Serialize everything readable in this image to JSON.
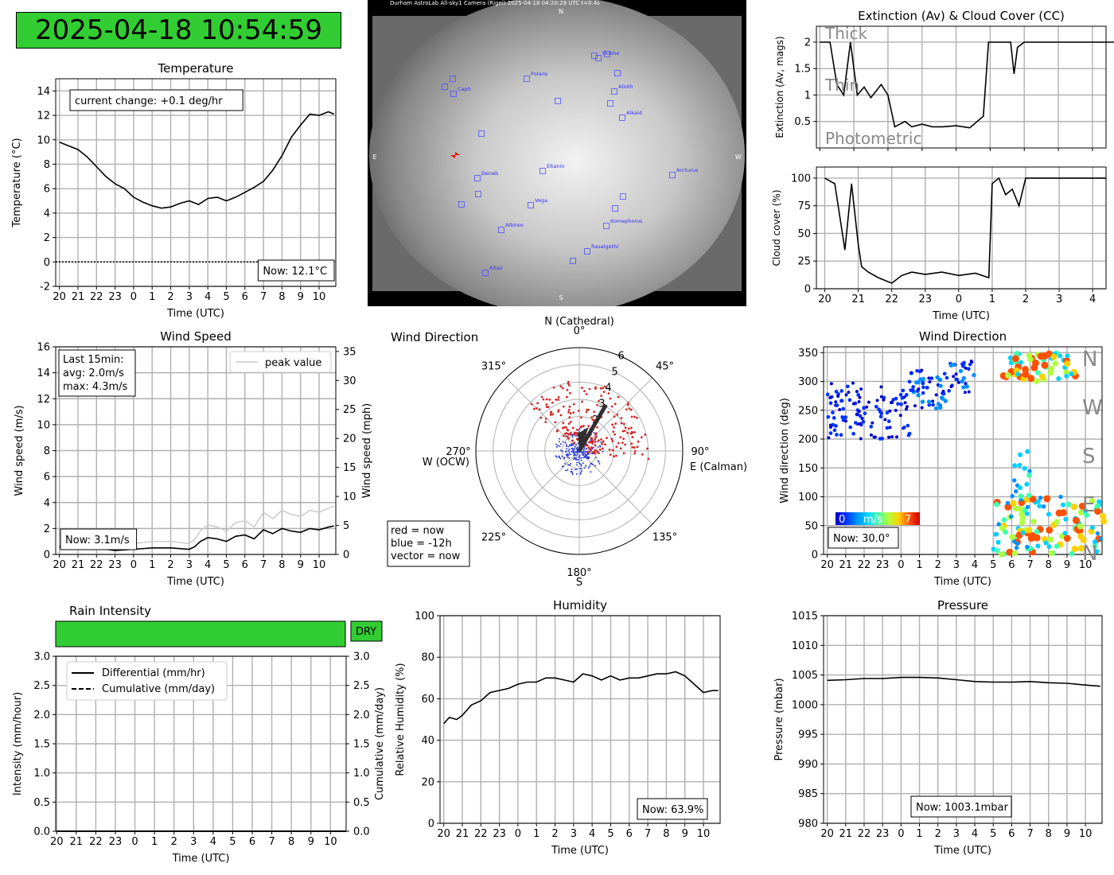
{
  "timestamp": "2025-04-18 10:54:59",
  "colors": {
    "ok": "#32cd32",
    "grid": "#b0b0b0",
    "now": "#d62728",
    "past": "#2b3bd6",
    "vector": "#2f2f2f",
    "star": "#5050ff"
  },
  "time_ticks": [
    "20",
    "21",
    "22",
    "23",
    "0",
    "1",
    "2",
    "3",
    "4",
    "5",
    "6",
    "7",
    "8",
    "9",
    "10"
  ],
  "time_label": "Time (UTC)",
  "allsky": {
    "header": "Durham AstroLab All-sky1 Camera (Rigel)        2025-04-18 04:20:29 UTC        t=0.4s",
    "compass": {
      "n": "N",
      "s": "S",
      "e": "E",
      "w": "W"
    },
    "stars": [
      "Dubhe",
      "Polaris",
      "Caph",
      "Alioth",
      "Alkaid",
      "Eltanin",
      "Deneb",
      "Vega",
      "Arcturus",
      "Albireo",
      "Komephoros",
      "Rasalgethi",
      "Altair"
    ]
  },
  "rain": {
    "title": "Rain Intensity",
    "status": "DRY",
    "legend": [
      "Differential (mm/hr)",
      "Cumulative (mm/day)"
    ]
  },
  "chart_data": [
    {
      "id": "temperature",
      "type": "line",
      "title": "Temperature",
      "xlabel": "Time (UTC)",
      "ylabel": "Temperature (°C)",
      "ylim": [
        -2,
        15
      ],
      "yticks": [
        -2,
        0,
        2,
        4,
        6,
        8,
        10,
        12,
        14
      ],
      "annotation": "current change: +0.1 deg/hr",
      "now_label": "Now: 12.1°C",
      "series": [
        {
          "x": [
            20,
            20.5,
            21,
            21.5,
            22,
            22.5,
            23,
            23.5,
            24,
            24.5,
            25,
            25.5,
            26,
            26.5,
            27,
            27.5,
            28,
            28.5,
            29,
            29.5,
            30,
            30.5,
            31,
            31.5,
            32,
            32.5,
            33,
            33.5,
            34,
            34.5,
            34.8
          ],
          "y": [
            9.8,
            9.5,
            9.2,
            8.6,
            7.8,
            7.0,
            6.4,
            6.0,
            5.3,
            4.9,
            4.6,
            4.4,
            4.5,
            4.8,
            5.0,
            4.7,
            5.2,
            5.3,
            5.0,
            5.3,
            5.7,
            6.1,
            6.6,
            7.5,
            8.7,
            10.2,
            11.2,
            12.1,
            12.0,
            12.3,
            12.1
          ]
        }
      ],
      "hline": 0
    },
    {
      "id": "wind_speed",
      "type": "line",
      "title": "Wind Speed",
      "xlabel": "Time (UTC)",
      "ylabel": "Wind speed (m/s)",
      "ylabel_right": "Wind speed (mph)",
      "ylim": [
        0,
        16
      ],
      "yticks": [
        0,
        2,
        4,
        6,
        8,
        10,
        12,
        14,
        16
      ],
      "yticks_right": [
        0,
        5,
        10,
        15,
        20,
        25,
        30,
        35
      ],
      "legend": "peak value",
      "stats": [
        "Last 15min:",
        "avg: 2.0m/s",
        "max: 4.3m/s"
      ],
      "now_label": "Now: 3.1m/s",
      "series": [
        {
          "x": [
            20,
            21,
            22,
            23,
            24,
            25,
            26,
            27,
            27.3,
            27.6,
            28,
            28.5,
            29,
            29.5,
            30,
            30.5,
            31,
            31.5,
            32,
            32.5,
            33,
            33.5,
            34,
            34.5,
            34.8
          ],
          "y": [
            0.6,
            0.4,
            0.5,
            0.3,
            0.4,
            0.5,
            0.5,
            0.4,
            0.6,
            1.0,
            1.3,
            1.2,
            1.0,
            1.4,
            1.5,
            1.2,
            1.9,
            1.6,
            2.0,
            1.8,
            1.7,
            2.0,
            1.9,
            2.1,
            2.2
          ]
        }
      ]
    },
    {
      "id": "wind_direction_polar",
      "type": "scatter",
      "title": "Wind Direction",
      "north_label": "N (Cathedral)",
      "south_label": "S",
      "east_label": "E (Calman)",
      "west_label": "W (OCW)",
      "angle_labels": [
        "0°",
        "45°",
        "90°",
        "135°",
        "180°",
        "225°",
        "270°",
        "315°"
      ],
      "radial_ticks": [
        2,
        3,
        4,
        5,
        6
      ],
      "rlim": [
        0,
        6
      ],
      "legend_lines": [
        "red = now",
        "blue = -12h",
        "vector = now"
      ],
      "vector": {
        "direction_deg": 30,
        "speed": 3.1
      }
    },
    {
      "id": "extinction",
      "type": "line",
      "title": "Extinction (Av) & Cloud Cover (CC)",
      "ylabel": "Extinction (Av, mags)",
      "ylim": [
        0,
        2.3
      ],
      "yticks": [
        0.5,
        1.0,
        1.5,
        2.0
      ],
      "bands": [
        "Thick",
        "Thin",
        "Photometric"
      ],
      "series": [
        {
          "x": [
            20,
            20.3,
            20.5,
            20.7,
            20.9,
            21.1,
            21.3,
            21.5,
            21.8,
            22,
            22.2,
            22.5,
            22.7,
            23,
            23.3,
            23.6,
            24,
            24.4,
            24.8,
            24.95,
            25.05,
            25.3,
            25.6,
            25.7,
            25.8,
            26,
            26.5,
            27,
            28,
            29,
            30,
            31,
            32,
            33,
            34,
            34.8
          ],
          "y": [
            2.0,
            2.0,
            1.2,
            1.0,
            2.0,
            1.0,
            1.15,
            0.95,
            1.2,
            1.0,
            0.4,
            0.5,
            0.4,
            0.45,
            0.4,
            0.4,
            0.42,
            0.38,
            0.6,
            2.0,
            2.0,
            2.0,
            2.0,
            1.4,
            1.9,
            2.0,
            2.0,
            2.0,
            2.0,
            2.0,
            2.0,
            2.0,
            2.0,
            2.0,
            2.0,
            2.0
          ]
        }
      ]
    },
    {
      "id": "cloud_cover",
      "type": "line",
      "title": "",
      "xlabel": "Time (UTC)",
      "ylabel": "Cloud cover (%)",
      "ylim": [
        0,
        110
      ],
      "yticks": [
        0,
        25,
        50,
        75,
        100
      ],
      "xticks": [
        "20",
        "21",
        "22",
        "23",
        "0",
        "1",
        "2",
        "3",
        "4"
      ],
      "series": [
        {
          "x": [
            20,
            20.3,
            20.5,
            20.6,
            20.8,
            21,
            21.1,
            21.3,
            21.6,
            22,
            22.3,
            22.6,
            23,
            23.5,
            24,
            24.5,
            24.9,
            25,
            25.2,
            25.4,
            25.6,
            25.8,
            26,
            26.5,
            27,
            28,
            28.4
          ],
          "y": [
            100,
            95,
            55,
            35,
            95,
            40,
            20,
            15,
            10,
            5,
            12,
            15,
            13,
            15,
            12,
            14,
            10,
            95,
            100,
            85,
            90,
            75,
            100,
            100,
            100,
            100,
            100
          ]
        }
      ]
    },
    {
      "id": "wind_direction_time",
      "type": "scatter",
      "title": "Wind Direction",
      "xlabel": "Time (UTC)",
      "ylabel": "Wind direction (deg)",
      "ylim": [
        0,
        360
      ],
      "yticks": [
        0,
        50,
        100,
        150,
        200,
        250,
        300,
        350
      ],
      "side_labels": [
        "N",
        "W",
        "S",
        "E",
        "N"
      ],
      "colorbar": [
        "0",
        "m/s",
        "7"
      ],
      "now_label": "Now: 30.0°"
    },
    {
      "id": "rain_intensity",
      "type": "line",
      "title": "Rain Intensity",
      "xlabel": "Time (UTC)",
      "ylabel": "Intensity (mm/hour)",
      "ylabel_right": "Cumulative (mm/day)",
      "ylim": [
        0,
        3
      ],
      "yticks": [
        "0.0",
        "0.5",
        "1.0",
        "1.5",
        "2.0",
        "2.5",
        "3.0"
      ],
      "series": [
        {
          "name": "Differential (mm/hr)",
          "x": [
            20,
            34.8
          ],
          "y": [
            0,
            0
          ]
        },
        {
          "name": "Cumulative (mm/day)",
          "x": [
            20,
            34.8
          ],
          "y": [
            0,
            0
          ]
        }
      ]
    },
    {
      "id": "humidity",
      "type": "line",
      "title": "Humidity",
      "xlabel": "Time (UTC)",
      "ylabel": "Relative Humidity (%)",
      "ylim": [
        0,
        100
      ],
      "yticks": [
        0,
        20,
        40,
        60,
        80,
        100
      ],
      "now_label": "Now: 63.9%",
      "series": [
        {
          "x": [
            20,
            20.3,
            20.7,
            21,
            21.5,
            22,
            22.5,
            23,
            23.5,
            24,
            24.5,
            25,
            25.5,
            26,
            26.5,
            27,
            27.5,
            28,
            28.5,
            29,
            29.5,
            30,
            30.5,
            31,
            31.5,
            32,
            32.5,
            33,
            33.5,
            34,
            34.5,
            34.8
          ],
          "y": [
            48,
            51,
            50,
            52,
            57,
            59,
            63,
            64,
            65,
            67,
            68,
            68,
            70,
            70,
            69,
            68,
            72,
            71,
            69,
            71,
            69,
            70,
            70,
            71,
            72,
            72,
            73,
            71,
            67,
            63,
            64,
            63.9
          ]
        }
      ]
    },
    {
      "id": "pressure",
      "type": "line",
      "title": "Pressure",
      "xlabel": "Time (UTC)",
      "ylabel": "Pressure (mbar)",
      "ylim": [
        980,
        1015
      ],
      "yticks": [
        980,
        985,
        990,
        995,
        1000,
        1005,
        1010,
        1015
      ],
      "now_label": "Now: 1003.1mbar",
      "series": [
        {
          "x": [
            20,
            21,
            22,
            23,
            24,
            25,
            26,
            27,
            28,
            29,
            30,
            31,
            32,
            33,
            34,
            34.8
          ],
          "y": [
            1004.1,
            1004.2,
            1004.4,
            1004.4,
            1004.6,
            1004.6,
            1004.5,
            1004.2,
            1003.9,
            1003.8,
            1003.8,
            1003.9,
            1003.7,
            1003.6,
            1003.3,
            1003.1
          ]
        }
      ]
    }
  ]
}
